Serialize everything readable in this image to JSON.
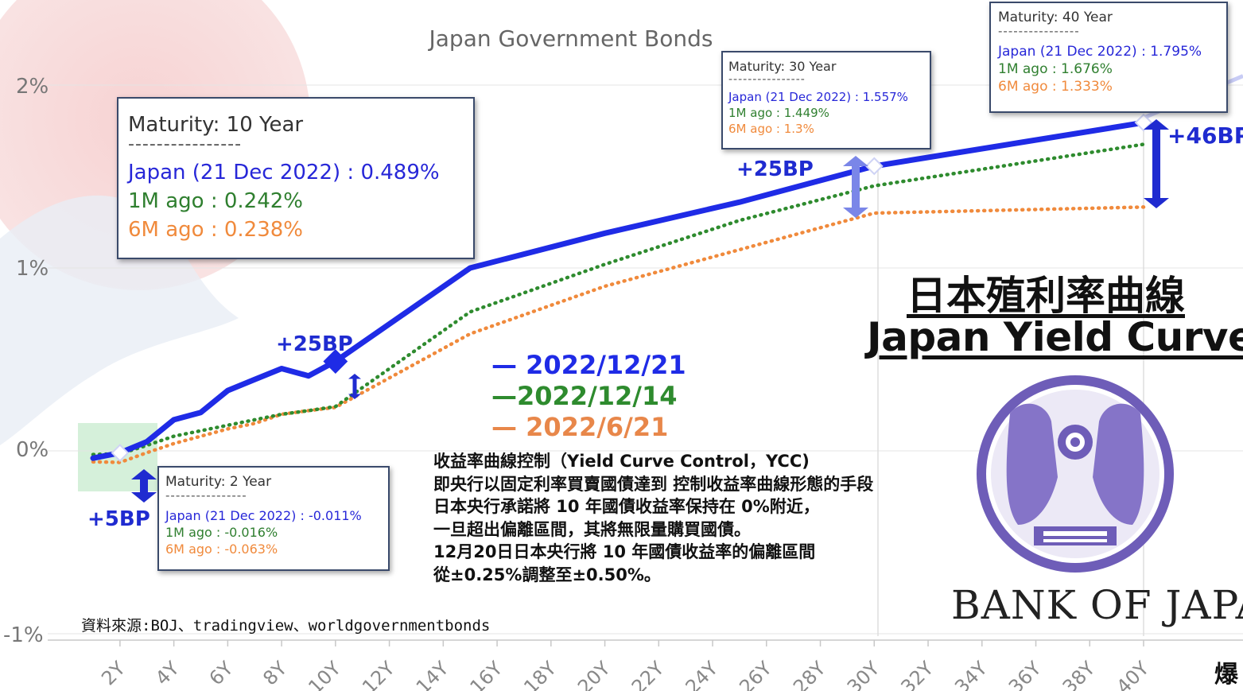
{
  "chart_data": {
    "type": "line",
    "title": "Japan Government Bonds",
    "x_ticks": [
      "2Y",
      "4Y",
      "6Y",
      "8Y",
      "10Y",
      "12Y",
      "14Y",
      "16Y",
      "18Y",
      "20Y",
      "22Y",
      "24Y",
      "26Y",
      "28Y",
      "30Y",
      "32Y",
      "34Y",
      "36Y",
      "38Y",
      "40Y"
    ],
    "y_ticks": [
      "2%",
      "1%",
      "0%",
      "-1%"
    ],
    "ylim": [
      -1,
      2.2
    ],
    "series": [
      {
        "name": "2022/12/21",
        "color": "#1f2be6",
        "style": "solid",
        "x": [
          1,
          2,
          3,
          4,
          5,
          6,
          7,
          8,
          9,
          10,
          15,
          20,
          25,
          30,
          40
        ],
        "y": [
          -0.04,
          -0.011,
          0.05,
          0.17,
          0.21,
          0.33,
          0.39,
          0.45,
          0.41,
          0.489,
          1.0,
          1.19,
          1.36,
          1.557,
          1.795
        ]
      },
      {
        "name": "2022/12/14",
        "color": "#2e8b2e",
        "style": "dotted",
        "x": [
          1,
          2,
          3,
          4,
          5,
          6,
          7,
          8,
          9,
          10,
          15,
          20,
          25,
          30,
          40
        ],
        "y": [
          -0.02,
          -0.016,
          0.03,
          0.08,
          0.11,
          0.14,
          0.17,
          0.2,
          0.22,
          0.242,
          0.76,
          1.02,
          1.26,
          1.449,
          1.676
        ]
      },
      {
        "name": "2022/6/21",
        "color": "#f08a3c",
        "style": "dotted",
        "x": [
          1,
          2,
          3,
          4,
          5,
          6,
          7,
          8,
          9,
          10,
          15,
          20,
          25,
          30,
          40
        ],
        "y": [
          -0.06,
          -0.063,
          -0.01,
          0.04,
          0.08,
          0.12,
          0.15,
          0.2,
          0.22,
          0.238,
          0.64,
          0.9,
          1.1,
          1.3,
          1.333
        ]
      }
    ],
    "tooltips": [
      {
        "title": "Maturity: 10 Year",
        "dashes": "----------------",
        "l1": "Japan (21 Dec 2022) : 0.489%",
        "l2": "1M ago : 0.242%",
        "l3": "6M ago : 0.238%"
      },
      {
        "title": "Maturity: 30 Year",
        "dashes": "----------------",
        "l1": "Japan (21 Dec 2022) : 1.557%",
        "l2": "1M ago : 1.449%",
        "l3": "6M ago : 1.3%"
      },
      {
        "title": "Maturity: 40 Year",
        "dashes": "----------------",
        "l1": "Japan (21 Dec 2022) : 1.795%",
        "l2": "1M ago : 1.676%",
        "l3": "6M ago : 1.333%"
      },
      {
        "title": "Maturity: 2 Year",
        "dashes": "----------------",
        "l1": "Japan (21 Dec 2022) : -0.011%",
        "l2": "1M ago : -0.016%",
        "l3": "6M ago : -0.063%"
      }
    ],
    "bp_labels": [
      "+5BP",
      "+25BP",
      "+25BP",
      "+46BP"
    ],
    "legend": [
      "— 2022/12/21",
      "—2022/12/14",
      "— 2022/6/21"
    ]
  },
  "annotation": {
    "title_cn": "日本殖利率曲線",
    "title_en": "Japan Yield Curve",
    "note": [
      "收益率曲線控制（Yield Curve Control，YCC)",
      "即央行以固定利率買賣國債達到 控制收益率曲線形態的手段",
      "日本央行承諾將 10 年國債收益率保持在 0%附近，",
      "一旦超出偏離區間，其將無限量購買國債。",
      "12月20日日本央行將 10 年國債收益率的偏離區間",
      "從±0.25%調整至±0.50%。"
    ],
    "source": "資料來源:BOJ、tradingview、worldgovernmentbonds",
    "bank_text": "BANK OF JAPAN",
    "logo_text": "爆"
  }
}
